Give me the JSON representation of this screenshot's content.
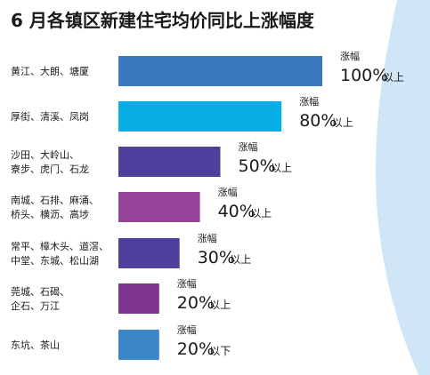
{
  "chart_data": {
    "type": "bar",
    "orientation": "horizontal",
    "title": "6 月各镇区新建住宅均价同比上涨幅度",
    "xlabel": "",
    "ylabel": "",
    "grid": false,
    "legend": "none",
    "xlim": [
      0,
      100
    ],
    "categories": [
      [
        "黄江、大朗、塘厦"
      ],
      [
        "厚街、清溪、凤岗"
      ],
      [
        "沙田、大岭山、",
        "寮步、虎门、石龙"
      ],
      [
        "南城、石排、麻涌、",
        "桥头、横沥、高埗"
      ],
      [
        "常平、樟木头、道滘、",
        "中堂、东城、松山湖"
      ],
      [
        "莞城、石碣、",
        "企石、万江"
      ],
      [
        "东坑、茶山"
      ]
    ],
    "values": [
      100,
      80,
      50,
      40,
      30,
      20,
      20
    ],
    "value_labels": [
      {
        "prefix": "涨幅",
        "number": "100%",
        "suffix": "以上"
      },
      {
        "prefix": "涨幅",
        "number": "80%",
        "suffix": "以上"
      },
      {
        "prefix": "涨幅",
        "number": "50%",
        "suffix": "以上"
      },
      {
        "prefix": "涨幅",
        "number": "40%",
        "suffix": "以上"
      },
      {
        "prefix": "涨幅",
        "number": "30%",
        "suffix": "以上"
      },
      {
        "prefix": "涨幅",
        "number": "20%",
        "suffix": "以上"
      },
      {
        "prefix": "涨幅",
        "number": "20%",
        "suffix": "以下"
      }
    ],
    "colors": [
      "#3a78c0",
      "#08aee6",
      "#4e3f9c",
      "#96439a",
      "#4e3f9c",
      "#7e3590",
      "#3a86c8"
    ],
    "background_accent": "#cfe6f6"
  }
}
